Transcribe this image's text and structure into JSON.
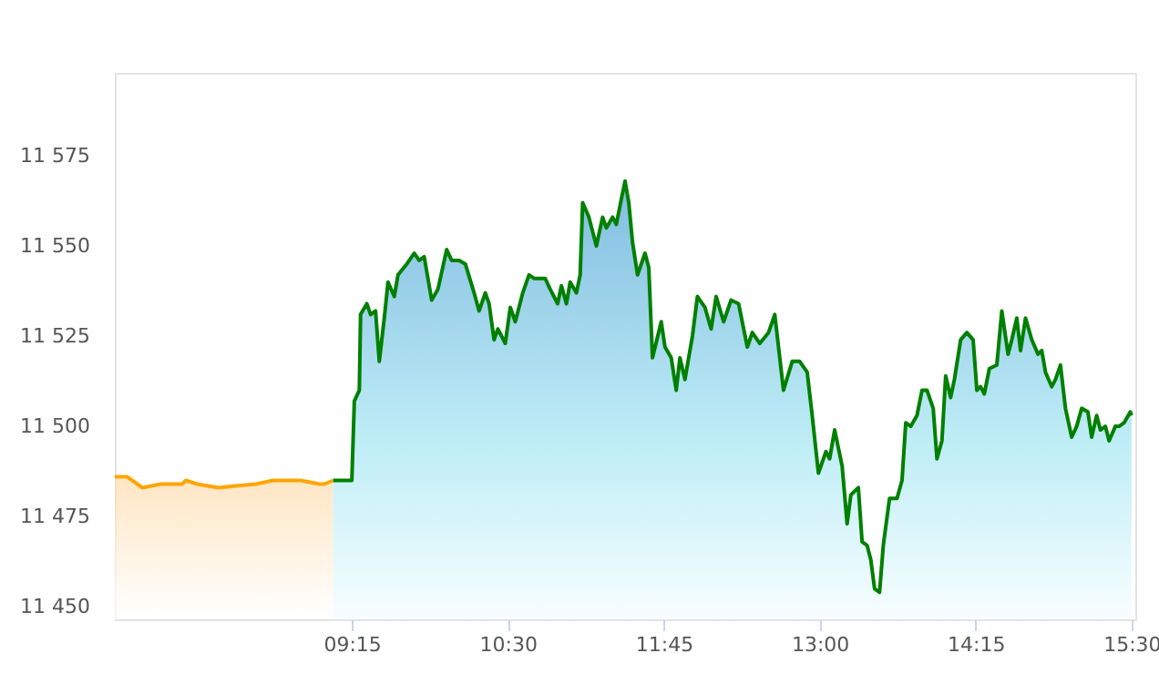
{
  "chart_data": {
    "type": "area",
    "xlim": [
      7.35,
      15.53
    ],
    "ylim": [
      11446.5,
      11598
    ],
    "xticks": [
      {
        "value": 9.25,
        "label": "09:15"
      },
      {
        "value": 10.5,
        "label": "10:30"
      },
      {
        "value": 11.75,
        "label": "11:45"
      },
      {
        "value": 13,
        "label": "13:00"
      },
      {
        "value": 14.25,
        "label": "14:15"
      },
      {
        "value": 15.5,
        "label": "15:30"
      }
    ],
    "yticks": [
      {
        "value": 11450,
        "label": "11 450"
      },
      {
        "value": 11475,
        "label": "11 475"
      },
      {
        "value": 11500,
        "label": "11 500"
      },
      {
        "value": 11525,
        "label": "11 525"
      },
      {
        "value": 11550,
        "label": "11 550"
      },
      {
        "value": 11575,
        "label": "11 575"
      }
    ],
    "grid": false,
    "series": [
      {
        "color": "#ffa500",
        "x": [
          7.35,
          7.45,
          7.57,
          7.72,
          7.89,
          7.92,
          8.01,
          8.18,
          8.48,
          8.62,
          8.84,
          8.99,
          9.03,
          9.1
        ],
        "values": [
          11486,
          11486,
          11483,
          11484,
          11484,
          11485,
          11484,
          11483,
          11484,
          11485,
          11485,
          11484,
          11484,
          11485
        ]
      },
      {
        "color": "#008000",
        "x": [
          9.1,
          9.25,
          9.27,
          9.31,
          9.32,
          9.37,
          9.4,
          9.44,
          9.47,
          9.51,
          9.54,
          9.59,
          9.62,
          9.69,
          9.75,
          9.79,
          9.83,
          9.89,
          9.94,
          10.01,
          10.05,
          10.11,
          10.16,
          10.23,
          10.27,
          10.32,
          10.35,
          10.39,
          10.42,
          10.48,
          10.52,
          10.56,
          10.62,
          10.67,
          10.71,
          10.77,
          10.8,
          10.84,
          10.9,
          10.93,
          10.97,
          11.0,
          11.05,
          11.08,
          11.1,
          11.15,
          11.21,
          11.26,
          11.29,
          11.34,
          11.37,
          11.41,
          11.44,
          11.47,
          11.5,
          11.54,
          11.6,
          11.63,
          11.66,
          11.73,
          11.76,
          11.81,
          11.85,
          11.88,
          11.92,
          11.98,
          12.02,
          12.08,
          12.13,
          12.17,
          12.23,
          12.29,
          12.35,
          12.42,
          12.46,
          12.52,
          12.59,
          12.64,
          12.71,
          12.78,
          12.84,
          12.9,
          12.94,
          12.99,
          13.05,
          13.08,
          13.12,
          13.18,
          13.22,
          13.25,
          13.31,
          13.34,
          13.38,
          13.41,
          13.44,
          13.48,
          13.51,
          13.56,
          13.62,
          13.66,
          13.69,
          13.73,
          13.78,
          13.82,
          13.86,
          13.91,
          13.94,
          13.98,
          14.01,
          14.05,
          14.08,
          14.13,
          14.18,
          14.23,
          14.26,
          14.29,
          14.32,
          14.36,
          14.42,
          14.46,
          14.51,
          14.54,
          14.58,
          14.61,
          14.65,
          14.7,
          14.75,
          14.78,
          14.81,
          14.86,
          14.89,
          14.93,
          14.97,
          15.02,
          15.06,
          15.1,
          15.15,
          15.18,
          15.22,
          15.25,
          15.29,
          15.32,
          15.37,
          15.4,
          15.44,
          15.49,
          15.5
        ],
        "values": [
          11485,
          11485,
          11507,
          11510,
          11531,
          11534,
          11531,
          11532,
          11518,
          11530,
          11540,
          11536,
          11542,
          11545,
          11548,
          11546,
          11547,
          11535,
          11538,
          11549,
          11546,
          11546,
          11545,
          11537,
          11532,
          11537,
          11534,
          11524,
          11527,
          11523,
          11533,
          11529,
          11537,
          11542,
          11541,
          11541,
          11541,
          11538,
          11534,
          11539,
          11534,
          11540,
          11537,
          11542,
          11562,
          11558,
          11550,
          11558,
          11555,
          11558,
          11556,
          11563,
          11568,
          11562,
          11551,
          11542,
          11548,
          11544,
          11519,
          11529,
          11522,
          11519,
          11510,
          11519,
          11513,
          11525,
          11536,
          11533,
          11527,
          11536,
          11529,
          11535,
          11534,
          11522,
          11526,
          11523,
          11526,
          11531,
          11510,
          11518,
          11518,
          11515,
          11503,
          11487,
          11493,
          11491,
          11499,
          11489,
          11473,
          11481,
          11483,
          11468,
          11467,
          11463,
          11455,
          11454,
          11467,
          11480,
          11480,
          11485,
          11501,
          11500,
          11503,
          11510,
          11510,
          11505,
          11491,
          11496,
          11514,
          11508,
          11513,
          11524,
          11526,
          11524,
          11510,
          11511,
          11509,
          11516,
          11517,
          11532,
          11520,
          11524,
          11530,
          11521,
          11530,
          11524,
          11520,
          11521,
          11515,
          11511,
          11513,
          11517,
          11505,
          11497,
          11500,
          11505,
          11504,
          11497,
          11503,
          11499,
          11500,
          11496,
          11500,
          11500,
          11501,
          11504,
          11503
        ]
      }
    ]
  }
}
